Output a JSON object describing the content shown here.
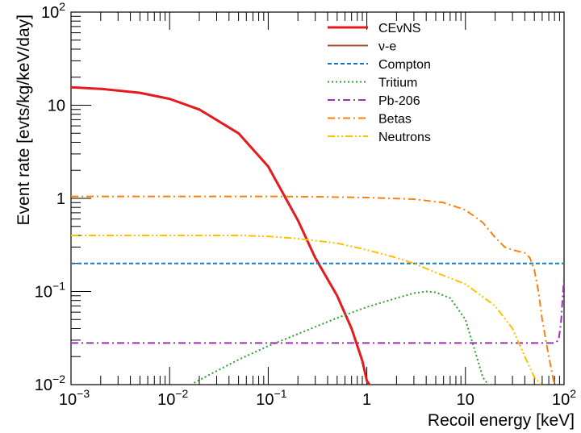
{
  "chart_data": {
    "type": "line",
    "title": "",
    "xlabel": "Recoil energy [keV]",
    "ylabel": "Event rate [evts/kg/keV/day]",
    "xscale": "log",
    "yscale": "log",
    "xlim": [
      0.001,
      100
    ],
    "ylim": [
      0.01,
      100
    ],
    "grid": false,
    "legend_position": "top-right",
    "x_tick_labels": [
      {
        "base": "10",
        "exp": "−3",
        "value": 0.001
      },
      {
        "base": "10",
        "exp": "−2",
        "value": 0.01
      },
      {
        "base": "10",
        "exp": "−1",
        "value": 0.1
      },
      {
        "base": "1",
        "exp": "",
        "value": 1
      },
      {
        "base": "10",
        "exp": "",
        "value": 10
      },
      {
        "base": "10",
        "exp": "2",
        "value": 100
      }
    ],
    "y_tick_labels": [
      {
        "base": "10",
        "exp": "−2",
        "value": 0.01
      },
      {
        "base": "10",
        "exp": "−1",
        "value": 0.1
      },
      {
        "base": "1",
        "exp": "",
        "value": 1
      },
      {
        "base": "10",
        "exp": "",
        "value": 10
      },
      {
        "base": "10",
        "exp": "2",
        "value": 100
      }
    ],
    "series": [
      {
        "name": "CEvNS",
        "color": "#e41a1c",
        "dash": "solid",
        "width": 3,
        "x": [
          0.001,
          0.002,
          0.005,
          0.01,
          0.02,
          0.05,
          0.1,
          0.2,
          0.3,
          0.5,
          0.7,
          0.9,
          1.0,
          1.1
        ],
        "y": [
          15.6,
          15.0,
          13.6,
          11.7,
          9.0,
          5.0,
          2.2,
          0.58,
          0.23,
          0.09,
          0.04,
          0.018,
          0.011,
          0.0095
        ]
      },
      {
        "name": "ν-e",
        "color": "#a0522d",
        "dash": "solid",
        "width": 2,
        "x": [],
        "y": []
      },
      {
        "name": "Compton",
        "color": "#1f77b4",
        "dash": "dashed",
        "width": 2,
        "x": [
          0.001,
          100
        ],
        "y": [
          0.2,
          0.2
        ]
      },
      {
        "name": "Tritium",
        "color": "#2ca02c",
        "dash": "dotted",
        "width": 2,
        "x": [
          0.015,
          0.02,
          0.05,
          0.1,
          0.2,
          0.5,
          1,
          2,
          3,
          4,
          5,
          7,
          10,
          13,
          15,
          17,
          18
        ],
        "y": [
          0.0095,
          0.0112,
          0.0185,
          0.026,
          0.035,
          0.052,
          0.068,
          0.085,
          0.096,
          0.1,
          0.098,
          0.085,
          0.05,
          0.02,
          0.012,
          0.01,
          0.0098
        ]
      },
      {
        "name": "Pb-206",
        "color": "#9b30b0",
        "dash": "dashdot",
        "width": 2,
        "x": [
          0.001,
          80,
          88,
          93,
          97,
          100
        ],
        "y": [
          0.028,
          0.028,
          0.03,
          0.045,
          0.09,
          0.14
        ]
      },
      {
        "name": "Betas",
        "color": "#ff7f0e",
        "dash": "dashdot",
        "width": 2,
        "x": [
          0.001,
          0.01,
          0.1,
          0.3,
          1,
          3,
          6,
          10,
          15,
          20,
          25,
          30,
          40,
          45,
          50,
          55,
          60,
          70,
          80
        ],
        "y": [
          1.05,
          1.05,
          1.05,
          1.04,
          1.02,
          0.98,
          0.9,
          0.75,
          0.55,
          0.38,
          0.3,
          0.28,
          0.26,
          0.23,
          0.17,
          0.1,
          0.05,
          0.02,
          0.0098
        ]
      },
      {
        "name": "Neutrons",
        "color": "#ffc000",
        "dash": "dashdotdot",
        "width": 2,
        "x": [
          0.001,
          0.01,
          0.05,
          0.1,
          0.2,
          0.5,
          1,
          2,
          3,
          5,
          10,
          20,
          30,
          40,
          50,
          60
        ],
        "y": [
          0.4,
          0.4,
          0.4,
          0.39,
          0.37,
          0.33,
          0.28,
          0.23,
          0.2,
          0.16,
          0.12,
          0.07,
          0.04,
          0.02,
          0.012,
          0.0098
        ]
      }
    ]
  }
}
